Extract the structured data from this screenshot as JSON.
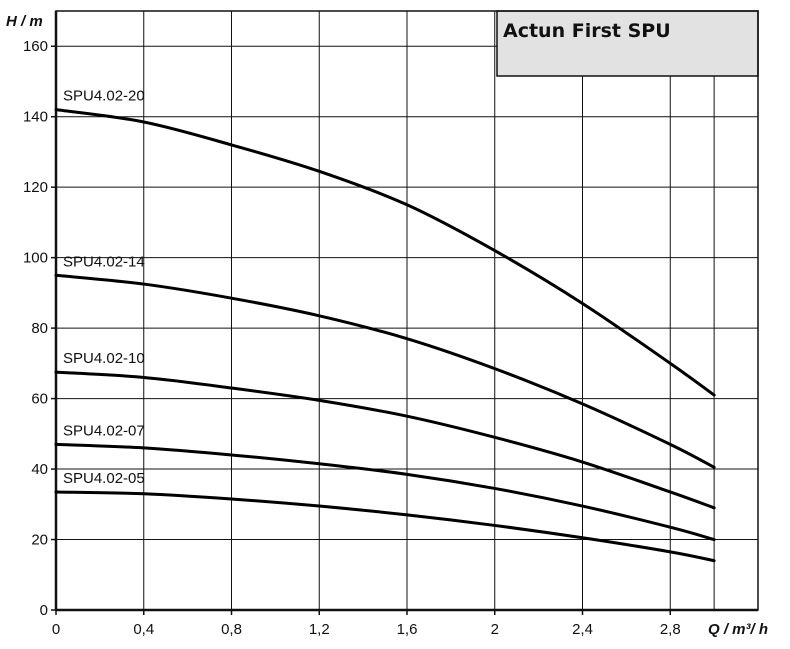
{
  "chart_data": {
    "type": "line",
    "title": "Actun First SPU",
    "xlabel": "Q / m³/ h",
    "ylabel": "H / m",
    "xlim": [
      0,
      3.2
    ],
    "ylim": [
      0,
      170
    ],
    "x_ticks": [
      "0",
      "0,4",
      "0,8",
      "1,2",
      "1,6",
      "2",
      "2,4",
      "2,8"
    ],
    "y_ticks": [
      "0",
      "20",
      "40",
      "60",
      "80",
      "100",
      "120",
      "140",
      "160"
    ],
    "grid": true,
    "series": [
      {
        "name": "SPU4.02-20",
        "x": [
          0,
          0.4,
          0.8,
          1.2,
          1.6,
          2.0,
          2.4,
          2.8,
          3.0
        ],
        "y": [
          142,
          138.5,
          132,
          124.5,
          115,
          102,
          87,
          70,
          61
        ]
      },
      {
        "name": "SPU4.02-14",
        "x": [
          0,
          0.4,
          0.8,
          1.2,
          1.6,
          2.0,
          2.4,
          2.8,
          3.0
        ],
        "y": [
          95,
          92.5,
          88.5,
          83.5,
          77,
          68.5,
          58.5,
          47,
          40.5
        ]
      },
      {
        "name": "SPU4.02-10",
        "x": [
          0,
          0.4,
          0.8,
          1.2,
          1.6,
          2.0,
          2.4,
          2.8,
          3.0
        ],
        "y": [
          67.5,
          66,
          63,
          59.5,
          55,
          49,
          42,
          33.5,
          29
        ]
      },
      {
        "name": "SPU4.02-07",
        "x": [
          0,
          0.4,
          0.8,
          1.2,
          1.6,
          2.0,
          2.4,
          2.8,
          3.0
        ],
        "y": [
          47,
          46,
          44,
          41.5,
          38.5,
          34.5,
          29.5,
          23.5,
          20
        ]
      },
      {
        "name": "SPU4.02-05",
        "x": [
          0,
          0.4,
          0.8,
          1.2,
          1.6,
          2.0,
          2.4,
          2.8,
          3.0
        ],
        "y": [
          33.5,
          33,
          31.5,
          29.5,
          27,
          24,
          20.5,
          16.5,
          14
        ]
      }
    ]
  }
}
